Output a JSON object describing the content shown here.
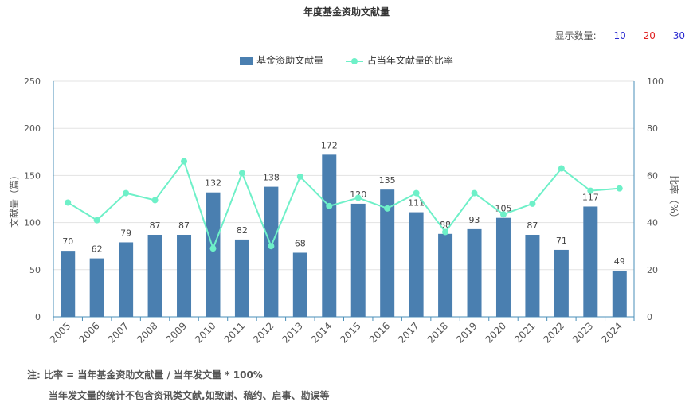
{
  "header": {
    "title": "年度基金资助文献量",
    "count_label": "显示数量:",
    "count_options": [
      {
        "label": "10",
        "color": "#2a2ad0"
      },
      {
        "label": "20",
        "color": "#e02020"
      },
      {
        "label": "30",
        "color": "#2a2ad0"
      }
    ]
  },
  "legend": {
    "bar_label": "基金资助文献量",
    "line_label": "占当年文献量的比率"
  },
  "notes": {
    "line1": "注:  比率 = 当年基金资助文献量 / 当年发文量 * 100%",
    "line2": "当年发文量的统计不包含资讯类文献,如致谢、稿约、启事、勘误等"
  },
  "colors": {
    "bar": "#4a7fb0",
    "line": "#6ef0c8",
    "grid": "#e3e3e3",
    "axis": "#4a8fb8"
  },
  "chart_data": {
    "type": "bar",
    "title": "年度基金资助文献量",
    "categories": [
      "2005",
      "2006",
      "2007",
      "2008",
      "2009",
      "2010",
      "2011",
      "2012",
      "2013",
      "2014",
      "2015",
      "2016",
      "2017",
      "2018",
      "2019",
      "2020",
      "2021",
      "2022",
      "2023",
      "2024"
    ],
    "series": [
      {
        "name": "基金资助文献量",
        "type": "bar",
        "axis": "left",
        "values": [
          70,
          62,
          79,
          87,
          87,
          132,
          82,
          138,
          68,
          172,
          120,
          135,
          111,
          88,
          93,
          105,
          87,
          71,
          117,
          49
        ]
      },
      {
        "name": "占当年文献量的比率",
        "type": "line",
        "axis": "right",
        "values": [
          48.5,
          41,
          52.5,
          49.5,
          66,
          29,
          61,
          30,
          59.5,
          47,
          50.5,
          46,
          52.5,
          36,
          52.5,
          43.5,
          48,
          63,
          53.5,
          54.5
        ]
      }
    ],
    "ylabel": "文献量（篇）",
    "y2label": "比率（%）",
    "ylim": [
      0,
      250
    ],
    "yticks": [
      "0",
      "50",
      "100",
      "150",
      "200",
      "250"
    ],
    "y2lim": [
      0,
      100
    ],
    "y2ticks": [
      "0",
      "20",
      "40",
      "60",
      "80",
      "100"
    ],
    "grid": true,
    "legend_position": "top"
  }
}
